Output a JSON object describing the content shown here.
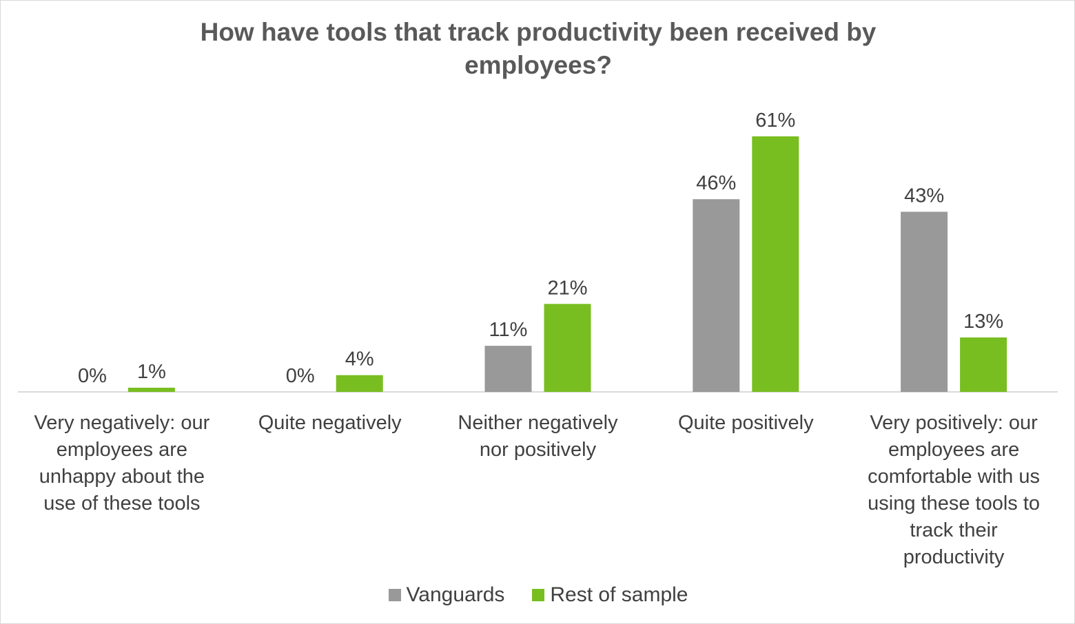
{
  "chart_data": {
    "type": "bar",
    "title": "How have tools that track productivity been received by employees?",
    "categories": [
      "Very negatively: our employees are unhappy about the use of these tools",
      "Quite negatively",
      "Neither negatively nor positively",
      "Quite positively",
      "Very positively: our employees are comfortable with us using these tools to track their productivity"
    ],
    "category_lines": [
      [
        "Very negatively: our",
        "employees are",
        "unhappy about the",
        "use of these tools"
      ],
      [
        "Quite negatively"
      ],
      [
        "Neither negatively",
        "nor positively"
      ],
      [
        "Quite positively"
      ],
      [
        "Very positively: our",
        "employees are",
        "comfortable with us",
        "using these tools to",
        "track their",
        "productivity"
      ]
    ],
    "series": [
      {
        "name": "Vanguards",
        "values": [
          0,
          0,
          11,
          46,
          43
        ],
        "labels": [
          "0%",
          "0%",
          "11%",
          "46%",
          "43%"
        ],
        "color": "#999999"
      },
      {
        "name": "Rest of sample",
        "values": [
          1,
          4,
          21,
          61,
          13
        ],
        "labels": [
          "1%",
          "4%",
          "21%",
          "61%",
          "13%"
        ],
        "color": "#78be20"
      }
    ],
    "ylim": [
      0,
      70
    ],
    "grid": false,
    "legend_position": "bottom"
  }
}
